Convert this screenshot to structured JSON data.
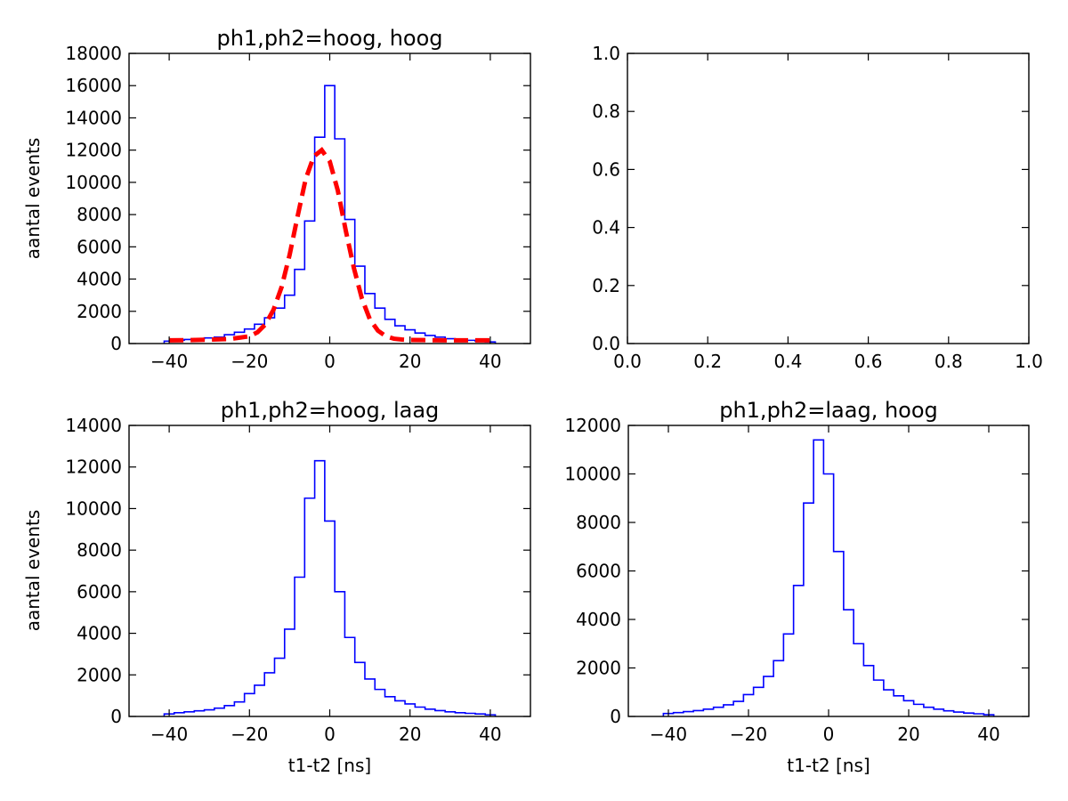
{
  "chart_data": [
    {
      "type": "histogram",
      "title": "ph1,ph2=hoog, hoog",
      "xlabel": "",
      "ylabel": "aantal events",
      "xlim": [
        -50,
        50
      ],
      "ylim": [
        0,
        18000
      ],
      "xticks": [
        -40,
        -20,
        0,
        20,
        40
      ],
      "xtick_labels": [
        "−40",
        "−20",
        "0",
        "20",
        "40"
      ],
      "yticks": [
        0,
        2000,
        4000,
        6000,
        8000,
        10000,
        12000,
        14000,
        16000,
        18000
      ],
      "ytick_labels": [
        "0",
        "2000",
        "4000",
        "6000",
        "8000",
        "10000",
        "12000",
        "14000",
        "16000",
        "18000"
      ],
      "bin_edges": [
        -41.25,
        -38.75,
        -36.25,
        -33.75,
        -31.25,
        -28.75,
        -26.25,
        -23.75,
        -21.25,
        -18.75,
        -16.25,
        -13.75,
        -11.25,
        -8.75,
        -6.25,
        -3.75,
        -1.25,
        1.25,
        3.75,
        6.25,
        8.75,
        11.25,
        13.75,
        16.25,
        18.75,
        21.25,
        23.75,
        26.25,
        28.75,
        31.25,
        33.75,
        36.25,
        38.75,
        41.25
      ],
      "series": [
        {
          "type": "step",
          "color": "#0000ff",
          "values": [
            150,
            200,
            250,
            300,
            350,
            400,
            550,
            700,
            900,
            1200,
            1600,
            2200,
            3000,
            4600,
            7600,
            12800,
            16000,
            12700,
            7700,
            4800,
            3100,
            2200,
            1500,
            1100,
            850,
            650,
            500,
            400,
            300,
            250,
            200,
            150,
            100
          ]
        },
        {
          "type": "line",
          "style": "dashed",
          "color": "#ff0000",
          "x": [
            -40,
            -35,
            -30,
            -25,
            -20,
            -18,
            -16,
            -14,
            -12,
            -10,
            -8,
            -6,
            -4,
            -2,
            0,
            2,
            4,
            6,
            8,
            10,
            12,
            14,
            16,
            18,
            20,
            25,
            30,
            35,
            40
          ],
          "values": [
            200,
            210,
            240,
            280,
            450,
            700,
            1200,
            2100,
            3500,
            5500,
            7900,
            10200,
            11600,
            12000,
            11300,
            9500,
            7000,
            4700,
            2800,
            1500,
            800,
            450,
            300,
            250,
            220,
            210,
            200,
            200,
            200
          ]
        }
      ]
    },
    {
      "type": "empty",
      "title": "",
      "xlabel": "",
      "ylabel": "",
      "xlim": [
        0,
        1
      ],
      "ylim": [
        0,
        1
      ],
      "xticks": [
        0,
        0.2,
        0.4,
        0.6,
        0.8,
        1
      ],
      "xtick_labels": [
        "0.0",
        "0.2",
        "0.4",
        "0.6",
        "0.8",
        "1.0"
      ],
      "yticks": [
        0,
        0.2,
        0.4,
        0.6,
        0.8,
        1
      ],
      "ytick_labels": [
        "0.0",
        "0.2",
        "0.4",
        "0.6",
        "0.8",
        "1.0"
      ],
      "series": []
    },
    {
      "type": "histogram",
      "title": "ph1,ph2=hoog, laag",
      "xlabel": "t1-t2 [ns]",
      "ylabel": "aantal events",
      "xlim": [
        -50,
        50
      ],
      "ylim": [
        0,
        14000
      ],
      "xticks": [
        -40,
        -20,
        0,
        20,
        40
      ],
      "xtick_labels": [
        "−40",
        "−20",
        "0",
        "20",
        "40"
      ],
      "yticks": [
        0,
        2000,
        4000,
        6000,
        8000,
        10000,
        12000,
        14000
      ],
      "ytick_labels": [
        "0",
        "2000",
        "4000",
        "6000",
        "8000",
        "10000",
        "12000",
        "14000"
      ],
      "bin_edges": [
        -41.25,
        -38.75,
        -36.25,
        -33.75,
        -31.25,
        -28.75,
        -26.25,
        -23.75,
        -21.25,
        -18.75,
        -16.25,
        -13.75,
        -11.25,
        -8.75,
        -6.25,
        -3.75,
        -1.25,
        1.25,
        3.75,
        6.25,
        8.75,
        11.25,
        13.75,
        16.25,
        18.75,
        21.25,
        23.75,
        26.25,
        28.75,
        31.25,
        33.75,
        36.25,
        38.75,
        41.25
      ],
      "series": [
        {
          "type": "step",
          "color": "#0000ff",
          "values": [
            120,
            180,
            220,
            270,
            320,
            400,
            520,
            700,
            1100,
            1500,
            2100,
            2800,
            4200,
            6700,
            10500,
            12300,
            9400,
            6000,
            3800,
            2600,
            1800,
            1300,
            950,
            750,
            600,
            450,
            350,
            280,
            220,
            180,
            150,
            120,
            80
          ]
        }
      ]
    },
    {
      "type": "histogram",
      "title": "ph1,ph2=laag, hoog",
      "xlabel": "t1-t2 [ns]",
      "ylabel": "",
      "xlim": [
        -50,
        50
      ],
      "ylim": [
        0,
        12000
      ],
      "xticks": [
        -40,
        -20,
        0,
        20,
        40
      ],
      "xtick_labels": [
        "−40",
        "−20",
        "0",
        "20",
        "40"
      ],
      "yticks": [
        0,
        2000,
        4000,
        6000,
        8000,
        10000,
        12000
      ],
      "ytick_labels": [
        "0",
        "2000",
        "4000",
        "6000",
        "8000",
        "10000",
        "12000"
      ],
      "bin_edges": [
        -41.25,
        -38.75,
        -36.25,
        -33.75,
        -31.25,
        -28.75,
        -26.25,
        -23.75,
        -21.25,
        -18.75,
        -16.25,
        -13.75,
        -11.25,
        -8.75,
        -6.25,
        -3.75,
        -1.25,
        1.25,
        3.75,
        6.25,
        8.75,
        11.25,
        13.75,
        16.25,
        18.75,
        21.25,
        23.75,
        26.25,
        28.75,
        31.25,
        33.75,
        36.25,
        38.75,
        41.25
      ],
      "series": [
        {
          "type": "step",
          "color": "#0000ff",
          "values": [
            120,
            160,
            200,
            240,
            300,
            380,
            480,
            620,
            900,
            1200,
            1650,
            2300,
            3400,
            5400,
            8800,
            11400,
            10000,
            6800,
            4400,
            3000,
            2100,
            1500,
            1100,
            850,
            650,
            500,
            380,
            300,
            230,
            180,
            140,
            110,
            70
          ]
        }
      ]
    }
  ]
}
